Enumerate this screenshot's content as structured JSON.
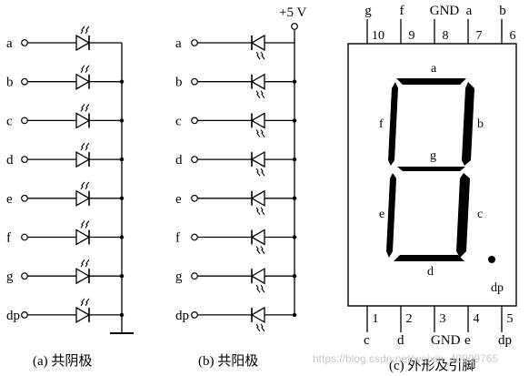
{
  "common_cathode": {
    "caption": "(a) 共阴极",
    "inputs": [
      "a",
      "b",
      "c",
      "d",
      "e",
      "f",
      "g",
      "dp"
    ]
  },
  "common_anode": {
    "caption": "(b) 共阳极",
    "supply": "+5 V",
    "inputs": [
      "a",
      "b",
      "c",
      "d",
      "e",
      "f",
      "g",
      "dp"
    ]
  },
  "package": {
    "caption": "(c) 外形及引脚",
    "top_pins": [
      {
        "number": "10",
        "name": "g"
      },
      {
        "number": "9",
        "name": "f"
      },
      {
        "number": "8",
        "name": "GND"
      },
      {
        "number": "7",
        "name": "a"
      },
      {
        "number": "6",
        "name": "b"
      }
    ],
    "bottom_pins": [
      {
        "number": "1",
        "name": "c"
      },
      {
        "number": "2",
        "name": "d"
      },
      {
        "number": "3",
        "name": "GND"
      },
      {
        "number": "4",
        "name": "e"
      },
      {
        "number": "5",
        "name": "dp"
      }
    ],
    "segment_labels": {
      "a": "a",
      "b": "b",
      "c": "c",
      "d": "d",
      "e": "e",
      "f": "f",
      "g": "g",
      "dp": "dp"
    }
  },
  "watermark": "https://blog.csdn.net/weixin_40909765"
}
